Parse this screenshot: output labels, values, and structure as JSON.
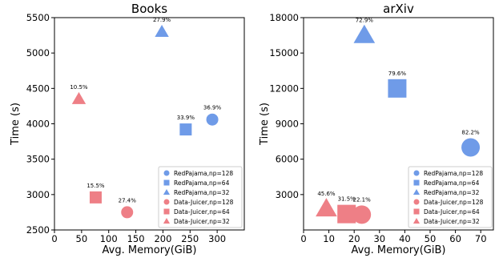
{
  "chart_data": [
    {
      "type": "scatter",
      "title": "Books",
      "xlabel": "Avg. Memory(GiB)",
      "ylabel": "Time (s)",
      "xlim": [
        0,
        350
      ],
      "ylim": [
        2500,
        5500
      ],
      "xticks": [
        0,
        50,
        100,
        150,
        200,
        250,
        300
      ],
      "xtick_labels": [
        "0",
        "50",
        "100",
        "150",
        "200",
        "250",
        "300"
      ],
      "yticks": [
        2500,
        3000,
        3500,
        4000,
        4500,
        5000,
        5500
      ],
      "ytick_labels": [
        "2500",
        "3000",
        "3500",
        "4000",
        "4500",
        "5000",
        "5500"
      ],
      "grid": false,
      "legend_position": "lower-right",
      "series": [
        {
          "name": "RedPajama,np=128",
          "color": "#6f9be8",
          "marker": "circle",
          "points": [
            {
              "x": 291,
              "y": 4060,
              "label": "36.9%"
            }
          ]
        },
        {
          "name": "RedPajama,np=64",
          "color": "#6f9be8",
          "marker": "square",
          "points": [
            {
              "x": 242,
              "y": 3920,
              "label": "33.9%"
            }
          ]
        },
        {
          "name": "RedPajama,np=32",
          "color": "#6f9be8",
          "marker": "triangle",
          "points": [
            {
              "x": 198,
              "y": 5300,
              "label": "27.9%"
            }
          ]
        },
        {
          "name": "Data-Juicer,np=128",
          "color": "#ee7f86",
          "marker": "circle",
          "points": [
            {
              "x": 134,
              "y": 2750,
              "label": "27.4%"
            }
          ]
        },
        {
          "name": "Data-Juicer,np=64",
          "color": "#ee7f86",
          "marker": "square",
          "points": [
            {
              "x": 76,
              "y": 2960,
              "label": "15.5%"
            }
          ]
        },
        {
          "name": "Data-Juicer,np=32",
          "color": "#ee7f86",
          "marker": "triangle",
          "points": [
            {
              "x": 45,
              "y": 4350,
              "label": "10.5%"
            }
          ]
        }
      ]
    },
    {
      "type": "scatter",
      "title": "arXiv",
      "xlabel": "Avg. Memory(GiB)",
      "ylabel": "Time (s)",
      "xlim": [
        0,
        75
      ],
      "ylim": [
        0,
        18000
      ],
      "xticks": [
        0,
        10,
        20,
        30,
        40,
        50,
        60,
        70
      ],
      "xtick_labels": [
        "0",
        "10",
        "20",
        "30",
        "40",
        "50",
        "60",
        "70"
      ],
      "yticks": [
        3000,
        6000,
        9000,
        12000,
        15000,
        18000
      ],
      "ytick_labels": [
        "3000",
        "6000",
        "9000",
        "12000",
        "15000",
        "18000"
      ],
      "grid": false,
      "legend_position": "lower-right",
      "series": [
        {
          "name": "RedPajama,np=128",
          "color": "#6f9be8",
          "marker": "circle",
          "points": [
            {
              "x": 66,
              "y": 7000,
              "label": "82.2%"
            }
          ]
        },
        {
          "name": "RedPajama,np=64",
          "color": "#6f9be8",
          "marker": "square",
          "points": [
            {
              "x": 37,
              "y": 12000,
              "label": "79.6%"
            }
          ]
        },
        {
          "name": "RedPajama,np=32",
          "color": "#6f9be8",
          "marker": "triangle",
          "points": [
            {
              "x": 24,
              "y": 16500,
              "label": "72.9%"
            }
          ]
        },
        {
          "name": "Data-Juicer,np=128",
          "color": "#ee7f86",
          "marker": "circle",
          "points": [
            {
              "x": 23,
              "y": 1300,
              "label": "22.1%"
            }
          ]
        },
        {
          "name": "Data-Juicer,np=64",
          "color": "#ee7f86",
          "marker": "square",
          "points": [
            {
              "x": 17,
              "y": 1350,
              "label": "31.5%"
            }
          ]
        },
        {
          "name": "Data-Juicer,np=32",
          "color": "#ee7f86",
          "marker": "triangle",
          "points": [
            {
              "x": 9,
              "y": 1800,
              "label": "45.6%"
            }
          ]
        }
      ]
    }
  ]
}
